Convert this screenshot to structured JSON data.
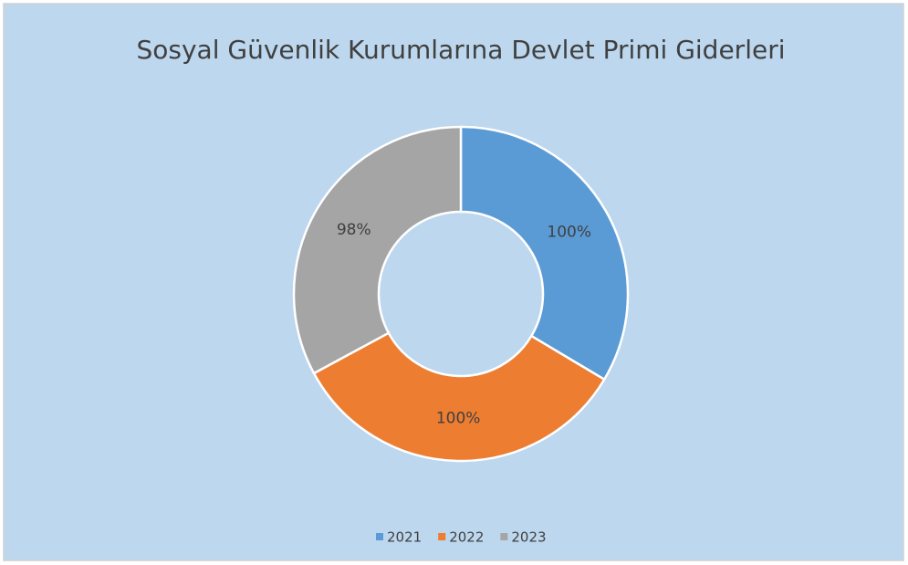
{
  "chart_data": {
    "type": "donut",
    "title": "Sosyal Güvenlik Kurumlarına Devlet Primi Giderleri",
    "categories": [
      "2021",
      "2022",
      "2023"
    ],
    "values": [
      100,
      100,
      98
    ],
    "value_labels": [
      "100%",
      "100%",
      "98%"
    ],
    "colors": [
      "#5b9bd5",
      "#ed7d31",
      "#a5a5a5"
    ],
    "legend": "bottom"
  }
}
